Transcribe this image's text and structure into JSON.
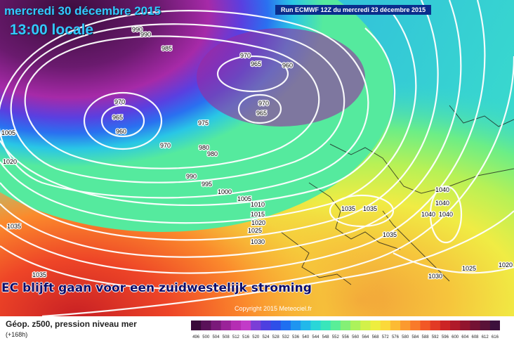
{
  "header": {
    "date": "mercredi 30 décembre 2015",
    "time": "13:00 locale",
    "run": "Run ECMWF 12Z du mercredi 23 décembre 2015"
  },
  "overlay_caption": "EC blijft gaan voor een zuidwestelijk stroming",
  "copyright": "Copyright 2015 Meteociel.fr",
  "legend": {
    "title": "Géop. z500, pression niveau mer",
    "subtitle": "(+168h)",
    "values": [
      "496",
      "500",
      "504",
      "508",
      "512",
      "516",
      "520",
      "524",
      "528",
      "532",
      "536",
      "540",
      "544",
      "548",
      "552",
      "556",
      "560",
      "564",
      "568",
      "572",
      "576",
      "580",
      "584",
      "588",
      "592",
      "596",
      "600",
      "604",
      "608",
      "612",
      "616"
    ],
    "colors": [
      "#3a0a3a",
      "#5a1259",
      "#7a1a7a",
      "#9a2399",
      "#b52db3",
      "#c23bc8",
      "#7b3ed6",
      "#4d3fe0",
      "#2e4fe8",
      "#1f6ff0",
      "#1f95f0",
      "#22b8ea",
      "#2ad6d8",
      "#39e6bb",
      "#59ee98",
      "#84f076",
      "#acf25b",
      "#d2f149",
      "#eeee3f",
      "#fbd93a",
      "#fcbb34",
      "#fb9a2f",
      "#f97a2a",
      "#f25826",
      "#e23a25",
      "#cc2425",
      "#b01a2a",
      "#92142e",
      "#741234",
      "#5a1238",
      "#3c103c"
    ]
  },
  "pressure_labels": [
    "990",
    "990",
    "985",
    "970",
    "965",
    "960",
    "970",
    "965",
    "960",
    "975",
    "970",
    "965",
    "970",
    "980",
    "980",
    "990",
    "995",
    "1000",
    "1005",
    "1005",
    "1010",
    "1015",
    "1020",
    "1020",
    "1025",
    "1030",
    "1035",
    "1035",
    "1035",
    "1035",
    "1035",
    "1040",
    "1040",
    "1040",
    "1040",
    "1030",
    "1025",
    "1020"
  ]
}
